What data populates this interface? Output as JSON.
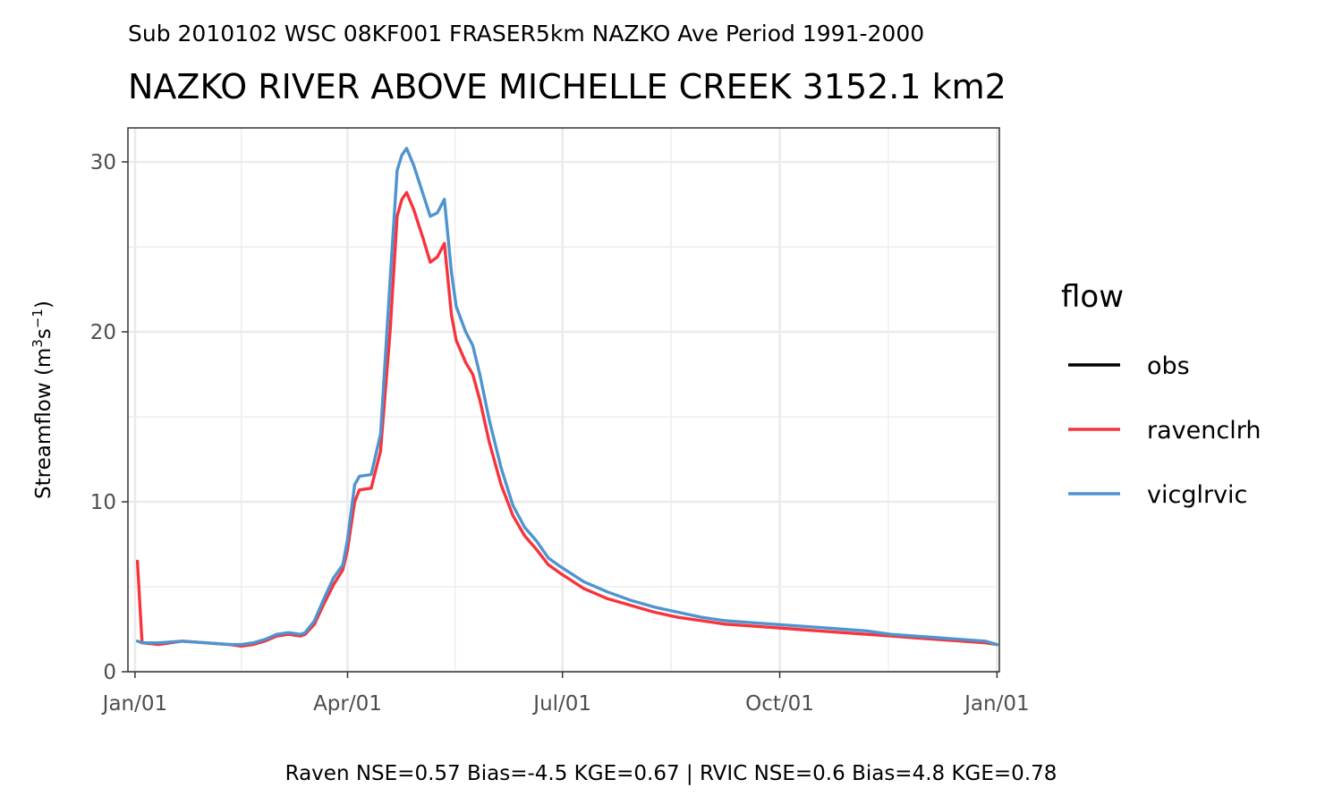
{
  "chart_data": {
    "type": "line",
    "subtitle": "Sub 2010102 WSC 08KF001 FRASER5km NAZKO Ave Period 1991-2000",
    "title": "NAZKO RIVER ABOVE MICHELLE CREEK 3152.1 km2",
    "ylabel": "Streamflow (m",
    "ylabel_sup1": "3",
    "ylabel_mid": "s",
    "ylabel_sup2": "−1",
    "ylabel_end": ")",
    "xlabel": "",
    "ylim": [
      0,
      32
    ],
    "yticks": [
      0,
      10,
      20,
      30
    ],
    "xlim_days": [
      -3,
      366
    ],
    "xticks": [
      {
        "day": 0,
        "label": "Jan/01"
      },
      {
        "day": 90,
        "label": "Apr/01"
      },
      {
        "day": 181,
        "label": "Jul/01"
      },
      {
        "day": 273,
        "label": "Oct/01"
      },
      {
        "day": 365,
        "label": "Jan/01"
      }
    ],
    "grid": true,
    "legend": {
      "title": "flow",
      "position": "right"
    },
    "caption": "Raven NSE=0.57 Bias=-4.5 KGE=0.67 | RVIC NSE=0.6 Bias=4.8 KGE=0.78",
    "series": [
      {
        "name": "obs",
        "color": "#000000",
        "x": [],
        "y": []
      },
      {
        "name": "ravenclrh",
        "color": "#f8333c",
        "x": [
          1,
          3,
          10,
          20,
          30,
          40,
          45,
          50,
          55,
          60,
          65,
          70,
          72,
          76,
          80,
          84,
          88,
          90,
          93,
          95,
          100,
          104,
          108,
          111,
          113,
          115,
          118,
          122,
          125,
          128,
          131,
          134,
          136,
          140,
          143,
          146,
          150,
          155,
          160,
          165,
          170,
          175,
          180,
          190,
          200,
          210,
          220,
          230,
          240,
          250,
          260,
          270,
          280,
          290,
          300,
          310,
          320,
          330,
          340,
          350,
          360,
          365
        ],
        "y": [
          6.5,
          1.7,
          1.6,
          1.8,
          1.7,
          1.6,
          1.5,
          1.6,
          1.8,
          2.1,
          2.2,
          2.1,
          2.2,
          2.8,
          4.0,
          5.1,
          6.0,
          7.2,
          10.0,
          10.7,
          10.8,
          13.0,
          20.0,
          26.8,
          27.8,
          28.2,
          27.2,
          25.5,
          24.1,
          24.4,
          25.2,
          21.0,
          19.5,
          18.2,
          17.5,
          16.0,
          13.5,
          11.0,
          9.2,
          8.0,
          7.2,
          6.3,
          5.8,
          4.9,
          4.3,
          3.9,
          3.5,
          3.2,
          3.0,
          2.8,
          2.7,
          2.6,
          2.5,
          2.4,
          2.3,
          2.2,
          2.1,
          2.0,
          1.9,
          1.8,
          1.7,
          1.6
        ]
      },
      {
        "name": "vicglrvic",
        "color": "#4f94cf",
        "x": [
          1,
          3,
          10,
          20,
          30,
          40,
          45,
          50,
          55,
          60,
          65,
          70,
          72,
          76,
          80,
          84,
          88,
          90,
          93,
          95,
          100,
          104,
          108,
          111,
          113,
          115,
          118,
          122,
          125,
          128,
          131,
          134,
          136,
          140,
          143,
          146,
          150,
          155,
          160,
          165,
          170,
          175,
          180,
          190,
          200,
          210,
          220,
          230,
          240,
          250,
          260,
          270,
          280,
          290,
          300,
          310,
          320,
          330,
          340,
          350,
          360,
          365
        ],
        "y": [
          1.8,
          1.7,
          1.7,
          1.8,
          1.7,
          1.6,
          1.6,
          1.7,
          1.9,
          2.2,
          2.3,
          2.2,
          2.3,
          3.0,
          4.3,
          5.5,
          6.3,
          7.8,
          11.0,
          11.5,
          11.6,
          14.0,
          23.0,
          29.5,
          30.4,
          30.8,
          29.8,
          28.1,
          26.8,
          27.0,
          27.8,
          23.5,
          21.5,
          20.0,
          19.2,
          17.5,
          14.8,
          12.0,
          9.8,
          8.5,
          7.7,
          6.7,
          6.2,
          5.3,
          4.7,
          4.2,
          3.8,
          3.5,
          3.2,
          3.0,
          2.9,
          2.8,
          2.7,
          2.6,
          2.5,
          2.4,
          2.2,
          2.1,
          2.0,
          1.9,
          1.8,
          1.6
        ]
      }
    ]
  }
}
